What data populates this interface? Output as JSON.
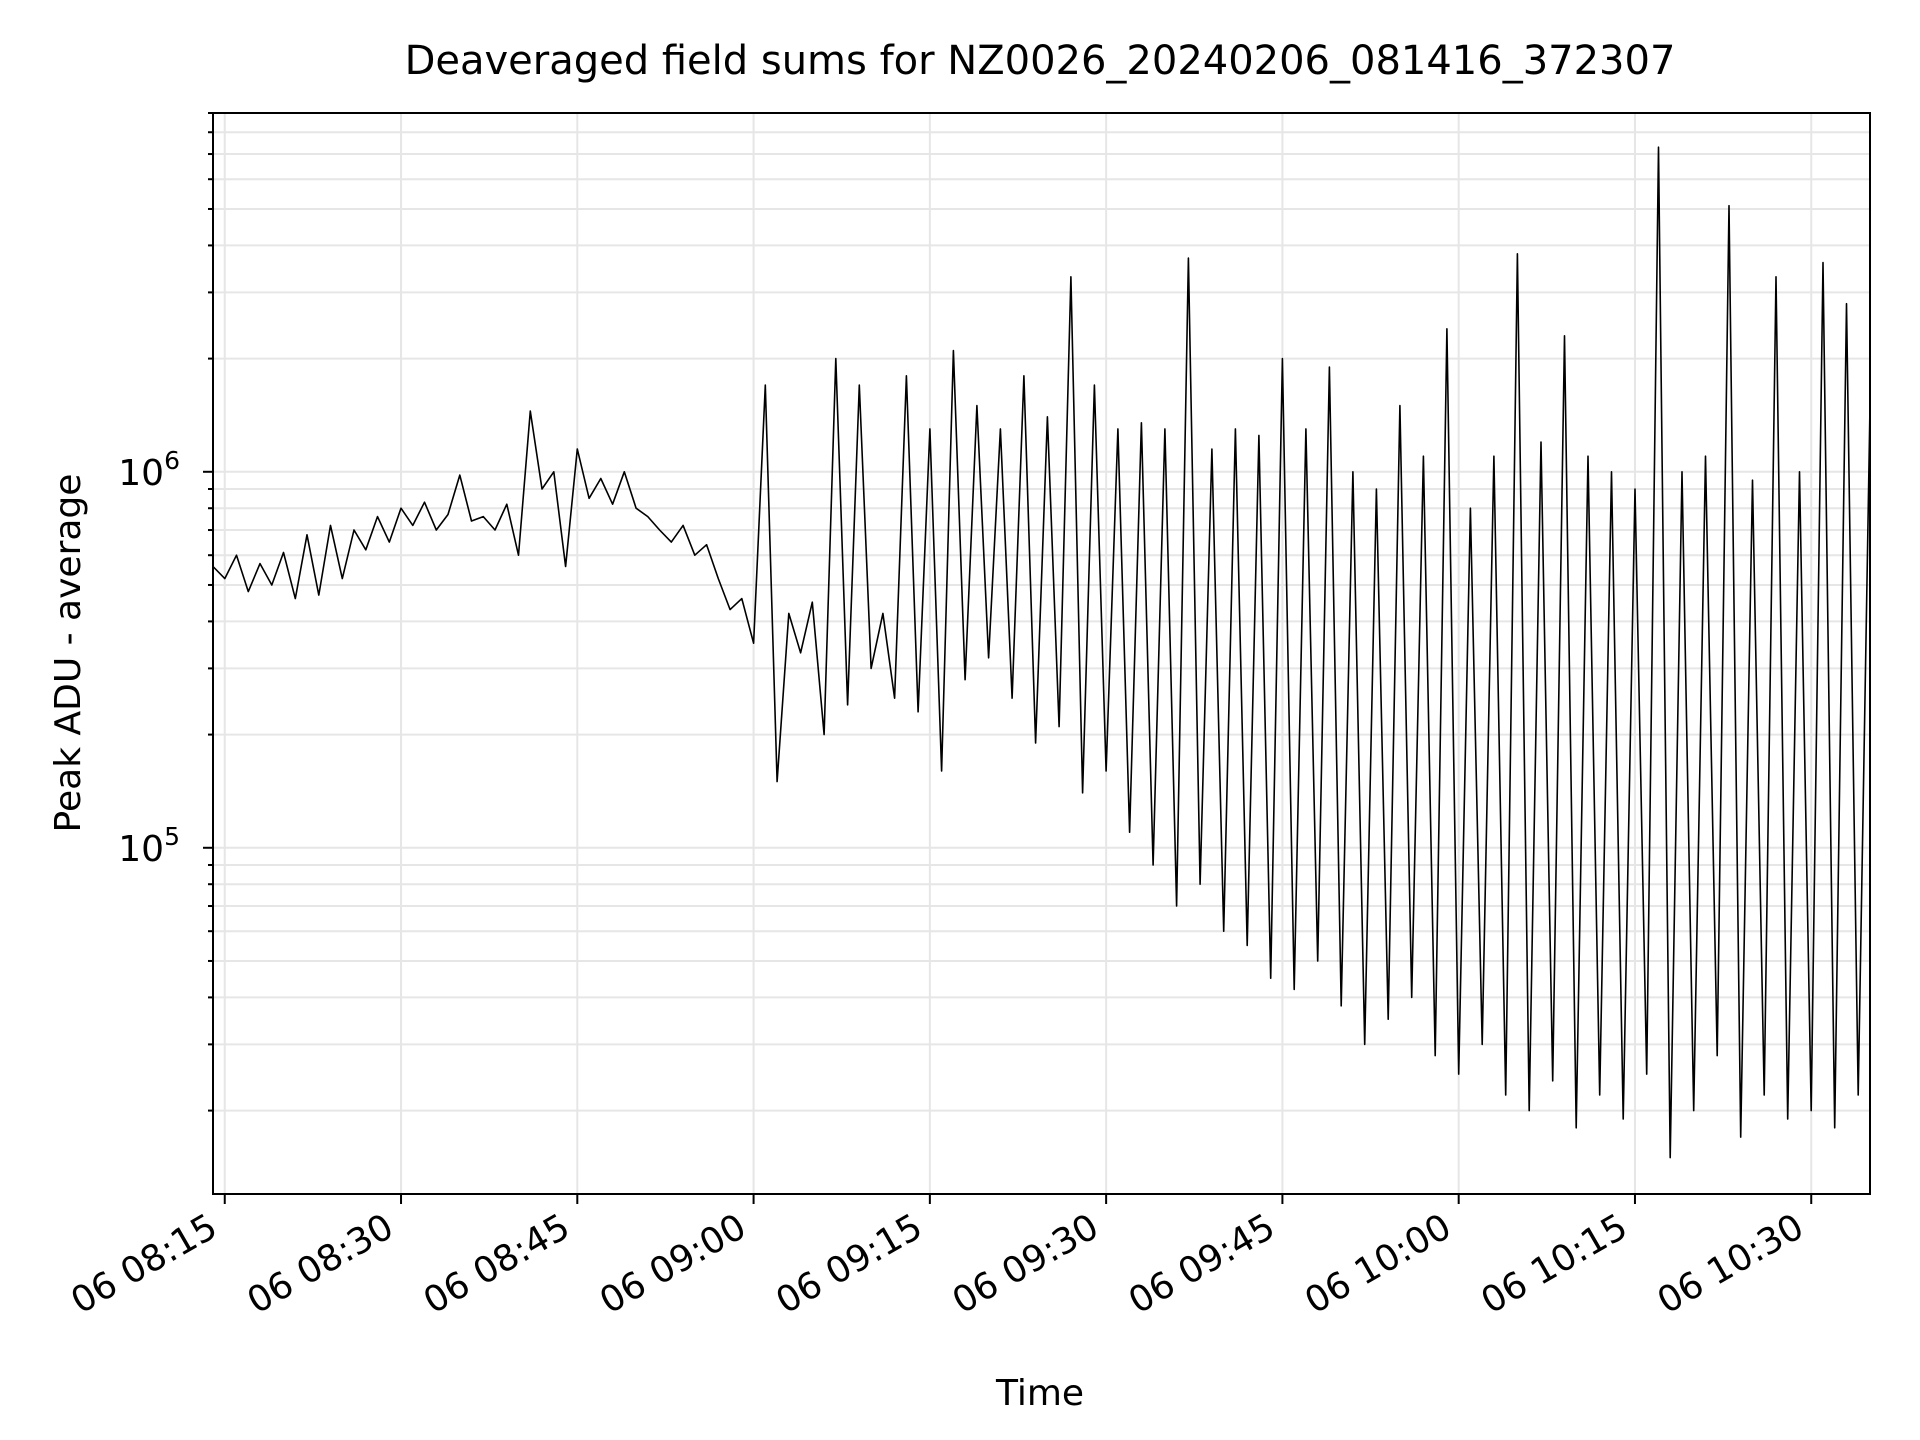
{
  "chart_data": {
    "type": "line",
    "title": "Deaveraged field sums for NZ0026_20240206_081416_372307",
    "xlabel": "Time",
    "ylabel": "Peak ADU - average",
    "y_scale": "log",
    "ylim": [
      12000,
      9000000
    ],
    "xlim": [
      "2024-02-06 08:14",
      "2024-02-06 10:35"
    ],
    "grid": true,
    "line_color": "#000000",
    "grid_color": "#e6e6e6",
    "x_ticks": [
      {
        "value": "2024-02-06 08:15",
        "label": "06 08:15"
      },
      {
        "value": "2024-02-06 08:30",
        "label": "06 08:30"
      },
      {
        "value": "2024-02-06 08:45",
        "label": "06 08:45"
      },
      {
        "value": "2024-02-06 09:00",
        "label": "06 09:00"
      },
      {
        "value": "2024-02-06 09:15",
        "label": "06 09:15"
      },
      {
        "value": "2024-02-06 09:30",
        "label": "06 09:30"
      },
      {
        "value": "2024-02-06 09:45",
        "label": "06 09:45"
      },
      {
        "value": "2024-02-06 10:00",
        "label": "06 10:00"
      },
      {
        "value": "2024-02-06 10:15",
        "label": "06 10:15"
      },
      {
        "value": "2024-02-06 10:30",
        "label": "06 10:30"
      }
    ],
    "y_ticks": [
      {
        "value": 100000,
        "base": "10",
        "exp": "5"
      },
      {
        "value": 1000000,
        "base": "10",
        "exp": "6"
      }
    ],
    "series": [
      {
        "points": [
          [
            "08:14",
            560000
          ],
          [
            "08:15",
            520000
          ],
          [
            "08:16",
            600000
          ],
          [
            "08:17",
            480000
          ],
          [
            "08:18",
            570000
          ],
          [
            "08:19",
            500000
          ],
          [
            "08:20",
            610000
          ],
          [
            "08:21",
            460000
          ],
          [
            "08:22",
            680000
          ],
          [
            "08:23",
            470000
          ],
          [
            "08:24",
            720000
          ],
          [
            "08:25",
            520000
          ],
          [
            "08:26",
            700000
          ],
          [
            "08:27",
            620000
          ],
          [
            "08:28",
            760000
          ],
          [
            "08:29",
            650000
          ],
          [
            "08:30",
            800000
          ],
          [
            "08:31",
            720000
          ],
          [
            "08:32",
            830000
          ],
          [
            "08:33",
            700000
          ],
          [
            "08:34",
            770000
          ],
          [
            "08:35",
            980000
          ],
          [
            "08:36",
            740000
          ],
          [
            "08:37",
            760000
          ],
          [
            "08:38",
            700000
          ],
          [
            "08:39",
            820000
          ],
          [
            "08:40",
            600000
          ],
          [
            "08:41",
            1450000
          ],
          [
            "08:42",
            900000
          ],
          [
            "08:43",
            1000000
          ],
          [
            "08:44",
            560000
          ],
          [
            "08:45",
            1150000
          ],
          [
            "08:46",
            850000
          ],
          [
            "08:47",
            960000
          ],
          [
            "08:48",
            820000
          ],
          [
            "08:49",
            1000000
          ],
          [
            "08:50",
            800000
          ],
          [
            "08:51",
            760000
          ],
          [
            "08:52",
            700000
          ],
          [
            "08:53",
            650000
          ],
          [
            "08:54",
            720000
          ],
          [
            "08:55",
            600000
          ],
          [
            "08:56",
            640000
          ],
          [
            "08:57",
            520000
          ],
          [
            "08:58",
            430000
          ],
          [
            "08:59",
            460000
          ],
          [
            "09:00",
            350000
          ],
          [
            "09:01",
            1700000
          ],
          [
            "09:02",
            150000
          ],
          [
            "09:03",
            420000
          ],
          [
            "09:04",
            330000
          ],
          [
            "09:05",
            450000
          ],
          [
            "09:06",
            200000
          ],
          [
            "09:07",
            2000000
          ],
          [
            "09:08",
            240000
          ],
          [
            "09:09",
            1700000
          ],
          [
            "09:10",
            300000
          ],
          [
            "09:11",
            420000
          ],
          [
            "09:12",
            250000
          ],
          [
            "09:13",
            1800000
          ],
          [
            "09:14",
            230000
          ],
          [
            "09:15",
            1300000
          ],
          [
            "09:16",
            160000
          ],
          [
            "09:17",
            2100000
          ],
          [
            "09:18",
            280000
          ],
          [
            "09:19",
            1500000
          ],
          [
            "09:20",
            320000
          ],
          [
            "09:21",
            1300000
          ],
          [
            "09:22",
            250000
          ],
          [
            "09:23",
            1800000
          ],
          [
            "09:24",
            190000
          ],
          [
            "09:25",
            1400000
          ],
          [
            "09:26",
            210000
          ],
          [
            "09:27",
            3300000
          ],
          [
            "09:28",
            140000
          ],
          [
            "09:29",
            1700000
          ],
          [
            "09:30",
            160000
          ],
          [
            "09:31",
            1300000
          ],
          [
            "09:32",
            110000
          ],
          [
            "09:33",
            1350000
          ],
          [
            "09:34",
            90000
          ],
          [
            "09:35",
            1300000
          ],
          [
            "09:36",
            70000
          ],
          [
            "09:37",
            3700000
          ],
          [
            "09:38",
            80000
          ],
          [
            "09:39",
            1150000
          ],
          [
            "09:40",
            60000
          ],
          [
            "09:41",
            1300000
          ],
          [
            "09:42",
            55000
          ],
          [
            "09:43",
            1250000
          ],
          [
            "09:44",
            45000
          ],
          [
            "09:45",
            2000000
          ],
          [
            "09:46",
            42000
          ],
          [
            "09:47",
            1300000
          ],
          [
            "09:48",
            50000
          ],
          [
            "09:49",
            1900000
          ],
          [
            "09:50",
            38000
          ],
          [
            "09:51",
            1000000
          ],
          [
            "09:52",
            30000
          ],
          [
            "09:53",
            900000
          ],
          [
            "09:54",
            35000
          ],
          [
            "09:55",
            1500000
          ],
          [
            "09:56",
            40000
          ],
          [
            "09:57",
            1100000
          ],
          [
            "09:58",
            28000
          ],
          [
            "09:59",
            2400000
          ],
          [
            "10:00",
            25000
          ],
          [
            "10:01",
            800000
          ],
          [
            "10:02",
            30000
          ],
          [
            "10:03",
            1100000
          ],
          [
            "10:04",
            22000
          ],
          [
            "10:05",
            3800000
          ],
          [
            "10:06",
            20000
          ],
          [
            "10:07",
            1200000
          ],
          [
            "10:08",
            24000
          ],
          [
            "10:09",
            2300000
          ],
          [
            "10:10",
            18000
          ],
          [
            "10:11",
            1100000
          ],
          [
            "10:12",
            22000
          ],
          [
            "10:13",
            1000000
          ],
          [
            "10:14",
            19000
          ],
          [
            "10:15",
            900000
          ],
          [
            "10:16",
            25000
          ],
          [
            "10:17",
            7300000
          ],
          [
            "10:18",
            15000
          ],
          [
            "10:19",
            1000000
          ],
          [
            "10:20",
            20000
          ],
          [
            "10:21",
            1100000
          ],
          [
            "10:22",
            28000
          ],
          [
            "10:23",
            5100000
          ],
          [
            "10:24",
            17000
          ],
          [
            "10:25",
            950000
          ],
          [
            "10:26",
            22000
          ],
          [
            "10:27",
            3300000
          ],
          [
            "10:28",
            19000
          ],
          [
            "10:29",
            1000000
          ],
          [
            "10:30",
            20000
          ],
          [
            "10:31",
            3600000
          ],
          [
            "10:32",
            18000
          ],
          [
            "10:33",
            2800000
          ],
          [
            "10:34",
            22000
          ],
          [
            "10:35",
            1500000
          ]
        ]
      }
    ]
  }
}
